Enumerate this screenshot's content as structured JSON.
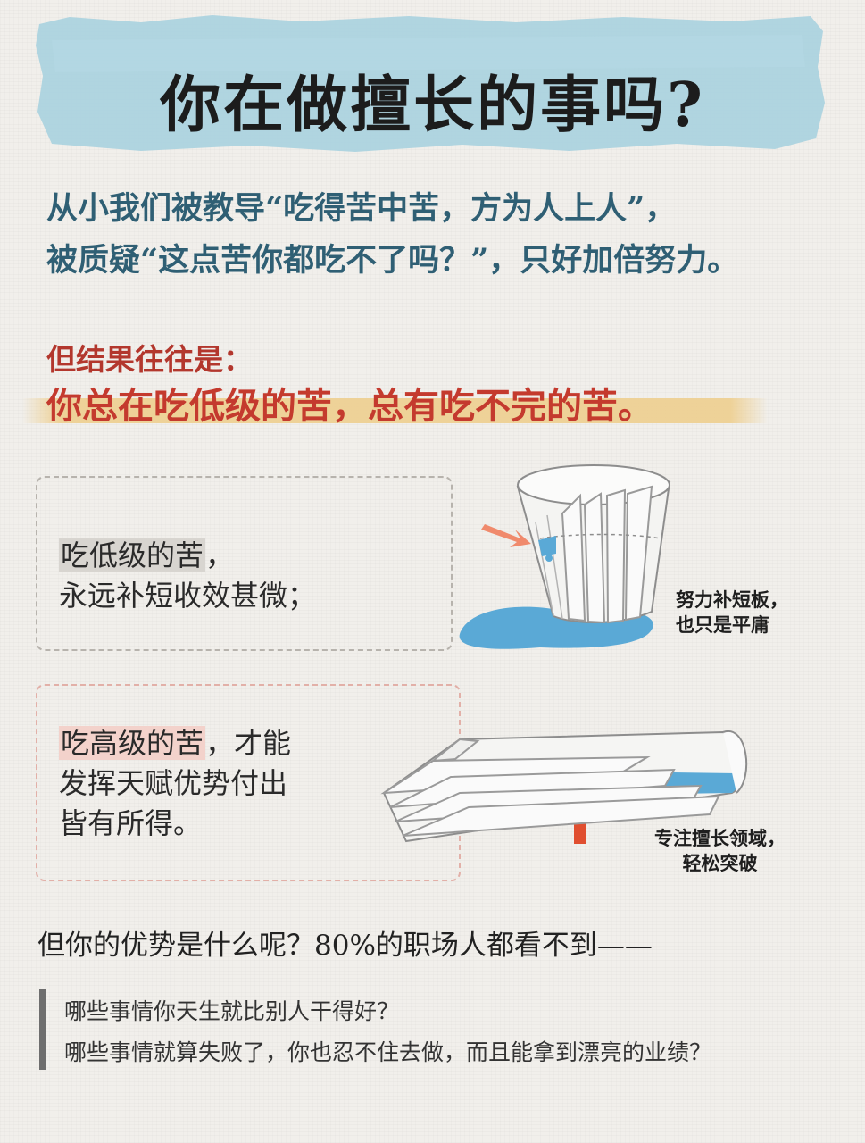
{
  "title": "你在做擅长的事吗?",
  "intro": {
    "line1": "从小我们被教导“吃得苦中苦，方为人上人”，",
    "line2": "被质疑“这点苦你都吃不了吗？”，只好加倍努力。"
  },
  "result": {
    "lead": "但结果往往是：",
    "main": "你总在吃低级的苦，总有吃不完的苦。"
  },
  "low_level": {
    "highlight": "吃低级的苦",
    "line1_rest": "，",
    "line2": "永远补短收效甚微；",
    "caption_line1": "努力补短板，",
    "caption_line2": "也只是平庸"
  },
  "high_level": {
    "highlight": "吃高级的苦",
    "line1_rest": "，才能",
    "line2": "发挥天赋优势付出",
    "line3": "皆有所得。",
    "caption_line1": "专注擅长领域，",
    "caption_line2": "轻松突破"
  },
  "question": "但你的优势是什么呢？80%的职场人都看不到——",
  "quotes": {
    "line1": "哪些事情你天生就比别人干得好？",
    "line2": "哪些事情就算失败了，你也忍不住去做，而且能拿到漂亮的业绩？"
  },
  "colors": {
    "title_band": "#a9d2df",
    "intro_text": "#2f5f74",
    "accent_red": "#c43a2e",
    "water": "#5aa9d6",
    "highlight_bar": "#eecd8a"
  }
}
